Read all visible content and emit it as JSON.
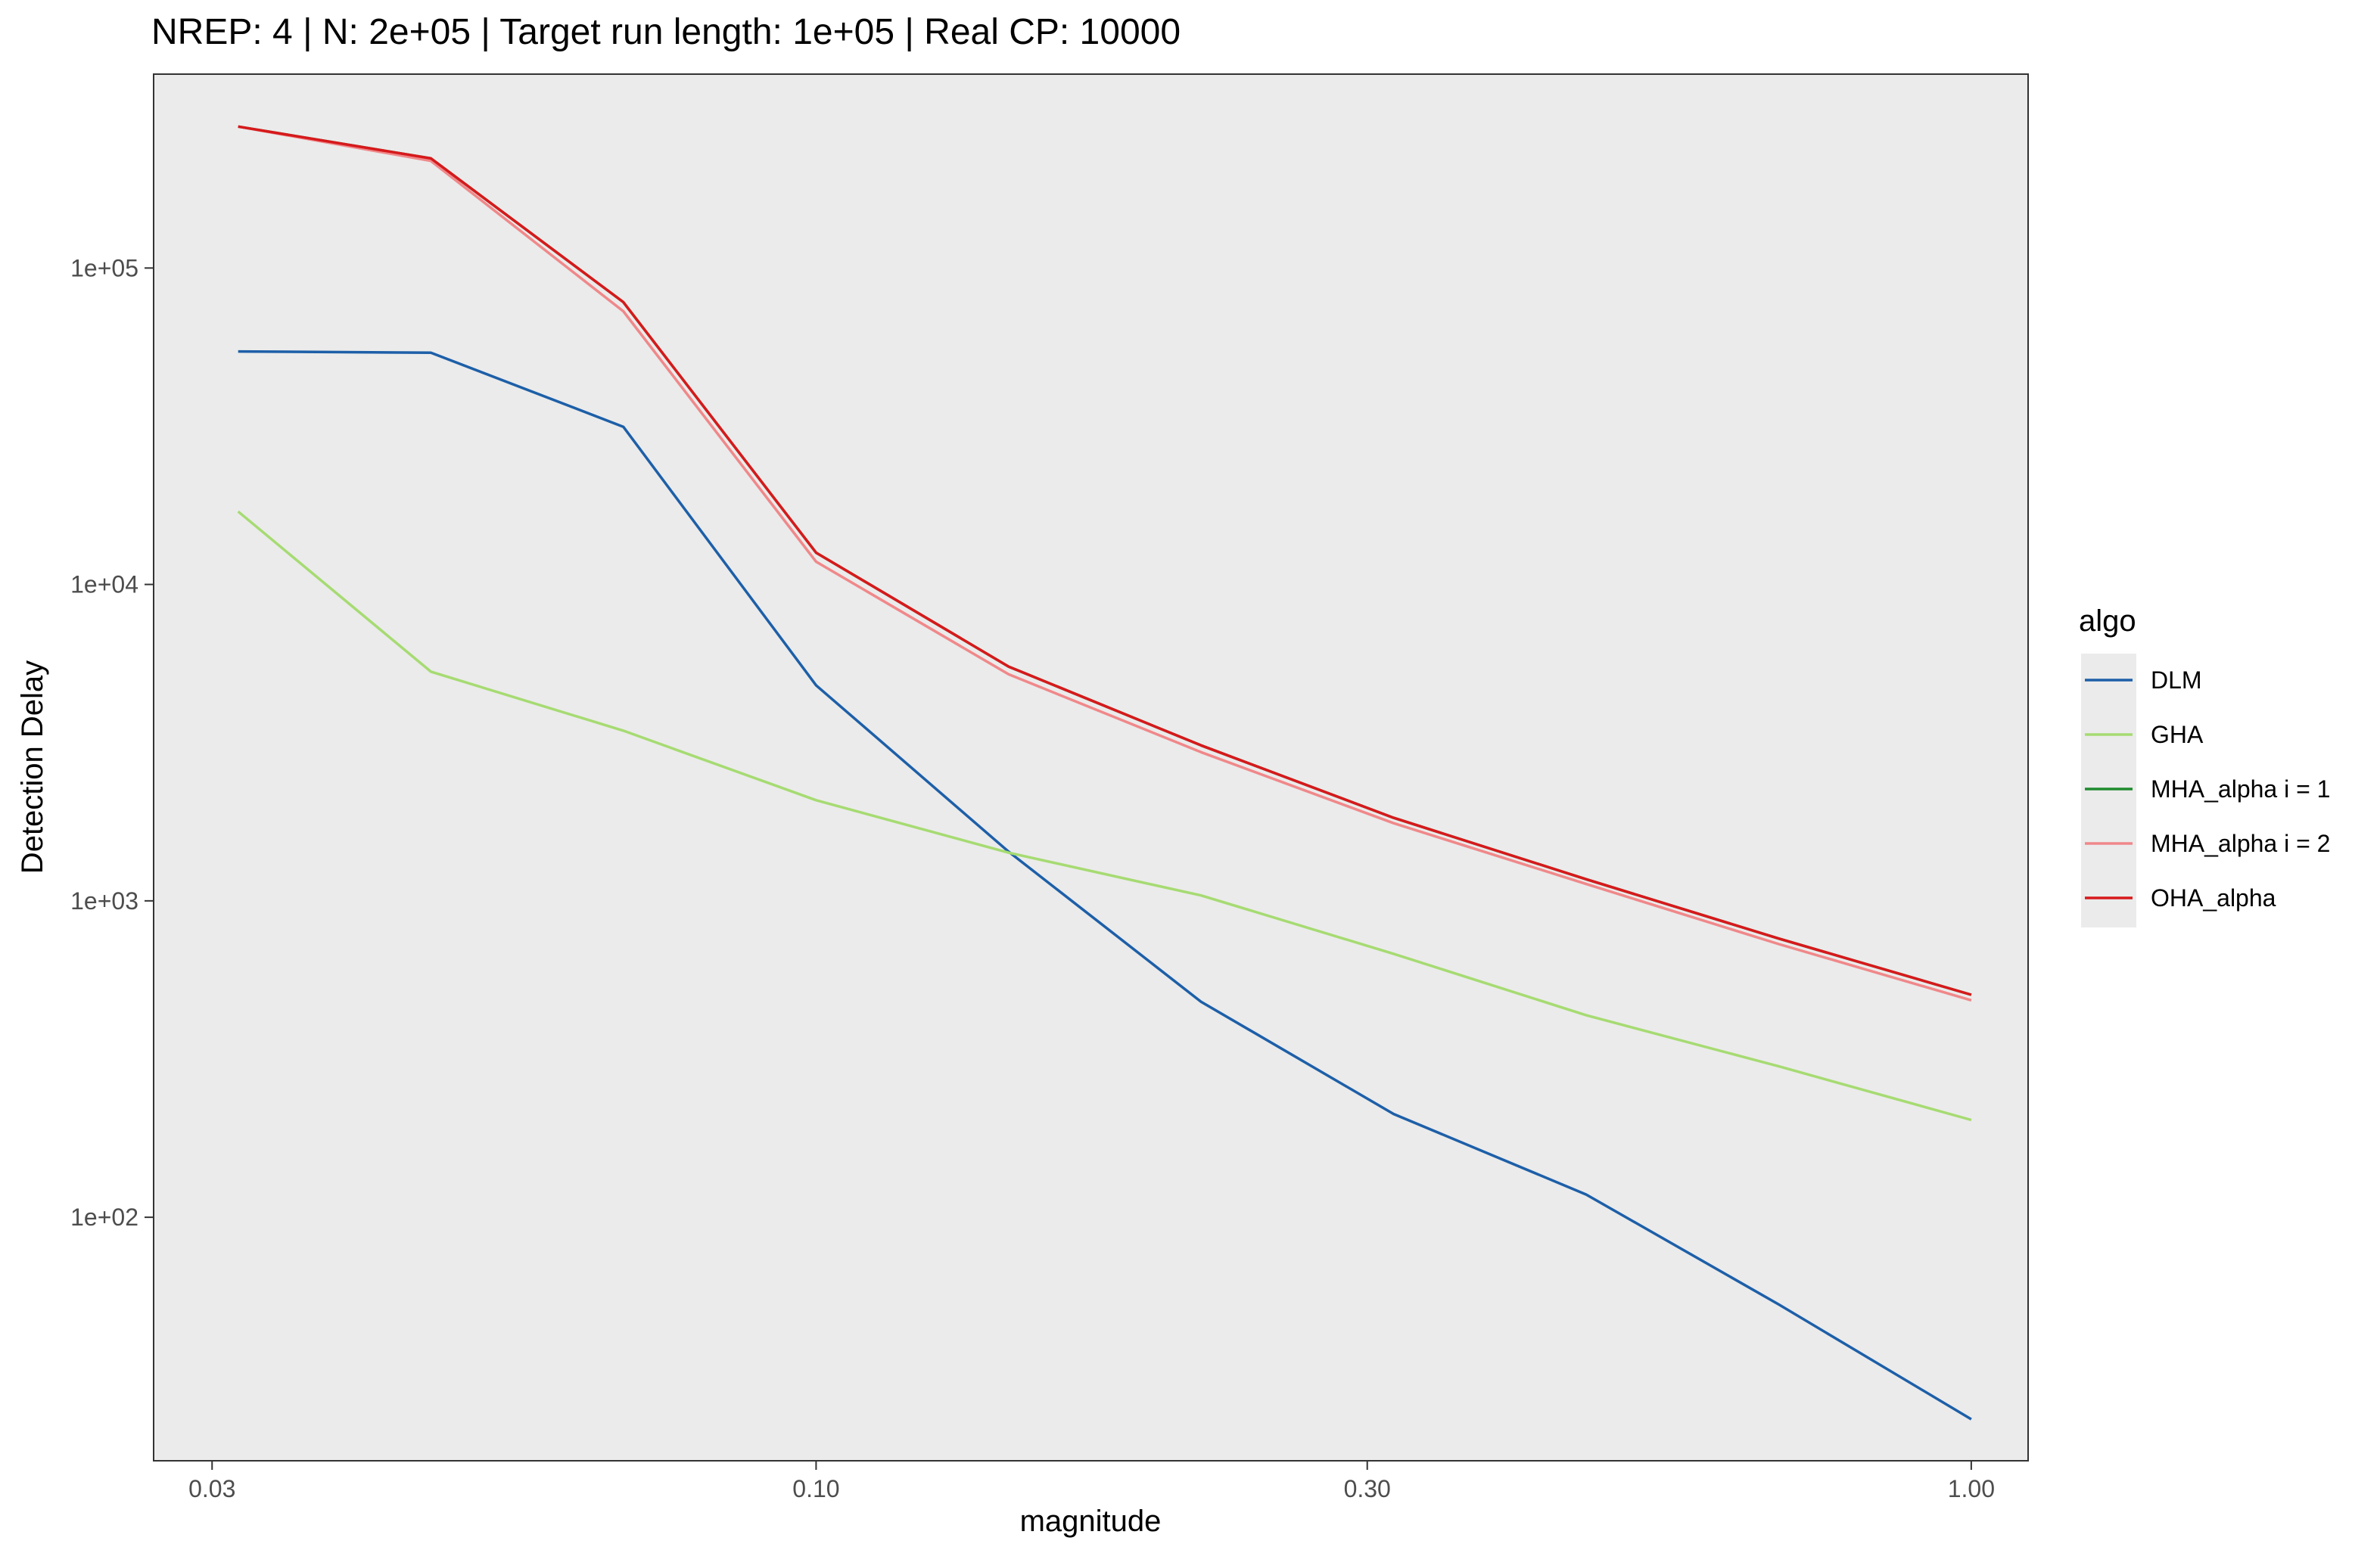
{
  "chart_data": {
    "type": "line",
    "title": "NREP: 4 | N: 2e+05 | Target run length: 1e+05 | Real CP: 10000",
    "xlabel": "magnitude",
    "ylabel": "Detection Delay",
    "x_scale": "log10",
    "y_scale": "log10",
    "xlim": [
      0.0267,
      1.12
    ],
    "ylim": [
      17,
      410000
    ],
    "x_ticks": [
      0.03,
      0.1,
      0.3,
      1.0
    ],
    "x_tick_labels": [
      "0.03",
      "0.10",
      "0.30",
      "1.00"
    ],
    "y_ticks": [
      100,
      1000,
      10000,
      100000
    ],
    "y_tick_labels": [
      "1e+02",
      "1e+03",
      "1e+04",
      "1e+05"
    ],
    "grid": false,
    "panel_background": "#ebebeb",
    "legend": {
      "title": "algo",
      "position": "right"
    },
    "x": [
      0.0316,
      0.0464,
      0.0681,
      0.1,
      0.1468,
      0.2154,
      0.3162,
      0.4642,
      0.6813,
      1.0
    ],
    "series": [
      {
        "name": "DLM",
        "color": "#1d5fa8",
        "values": [
          54500,
          54000,
          31500,
          4800,
          1430,
          480,
          212,
          118,
          53,
          23
        ]
      },
      {
        "name": "GHA",
        "color": "#a6db72",
        "values": [
          17000,
          5300,
          3450,
          2080,
          1420,
          1040,
          680,
          435,
          300,
          203
        ]
      },
      {
        "name": "MHA_alpha i = 1",
        "color": "#1f8a2e",
        "values": [
          280000,
          222000,
          78000,
          12600,
          5500,
          3100,
          1830,
          1170,
          760,
          505
        ]
      },
      {
        "name": "MHA_alpha i = 2",
        "color": "#f0888a",
        "values": [
          280000,
          218000,
          73000,
          11800,
          5200,
          2950,
          1760,
          1130,
          730,
          485
        ]
      },
      {
        "name": "OHA_alpha",
        "color": "#d7191c",
        "values": [
          280000,
          222000,
          78000,
          12600,
          5500,
          3100,
          1830,
          1170,
          760,
          505
        ]
      }
    ]
  }
}
